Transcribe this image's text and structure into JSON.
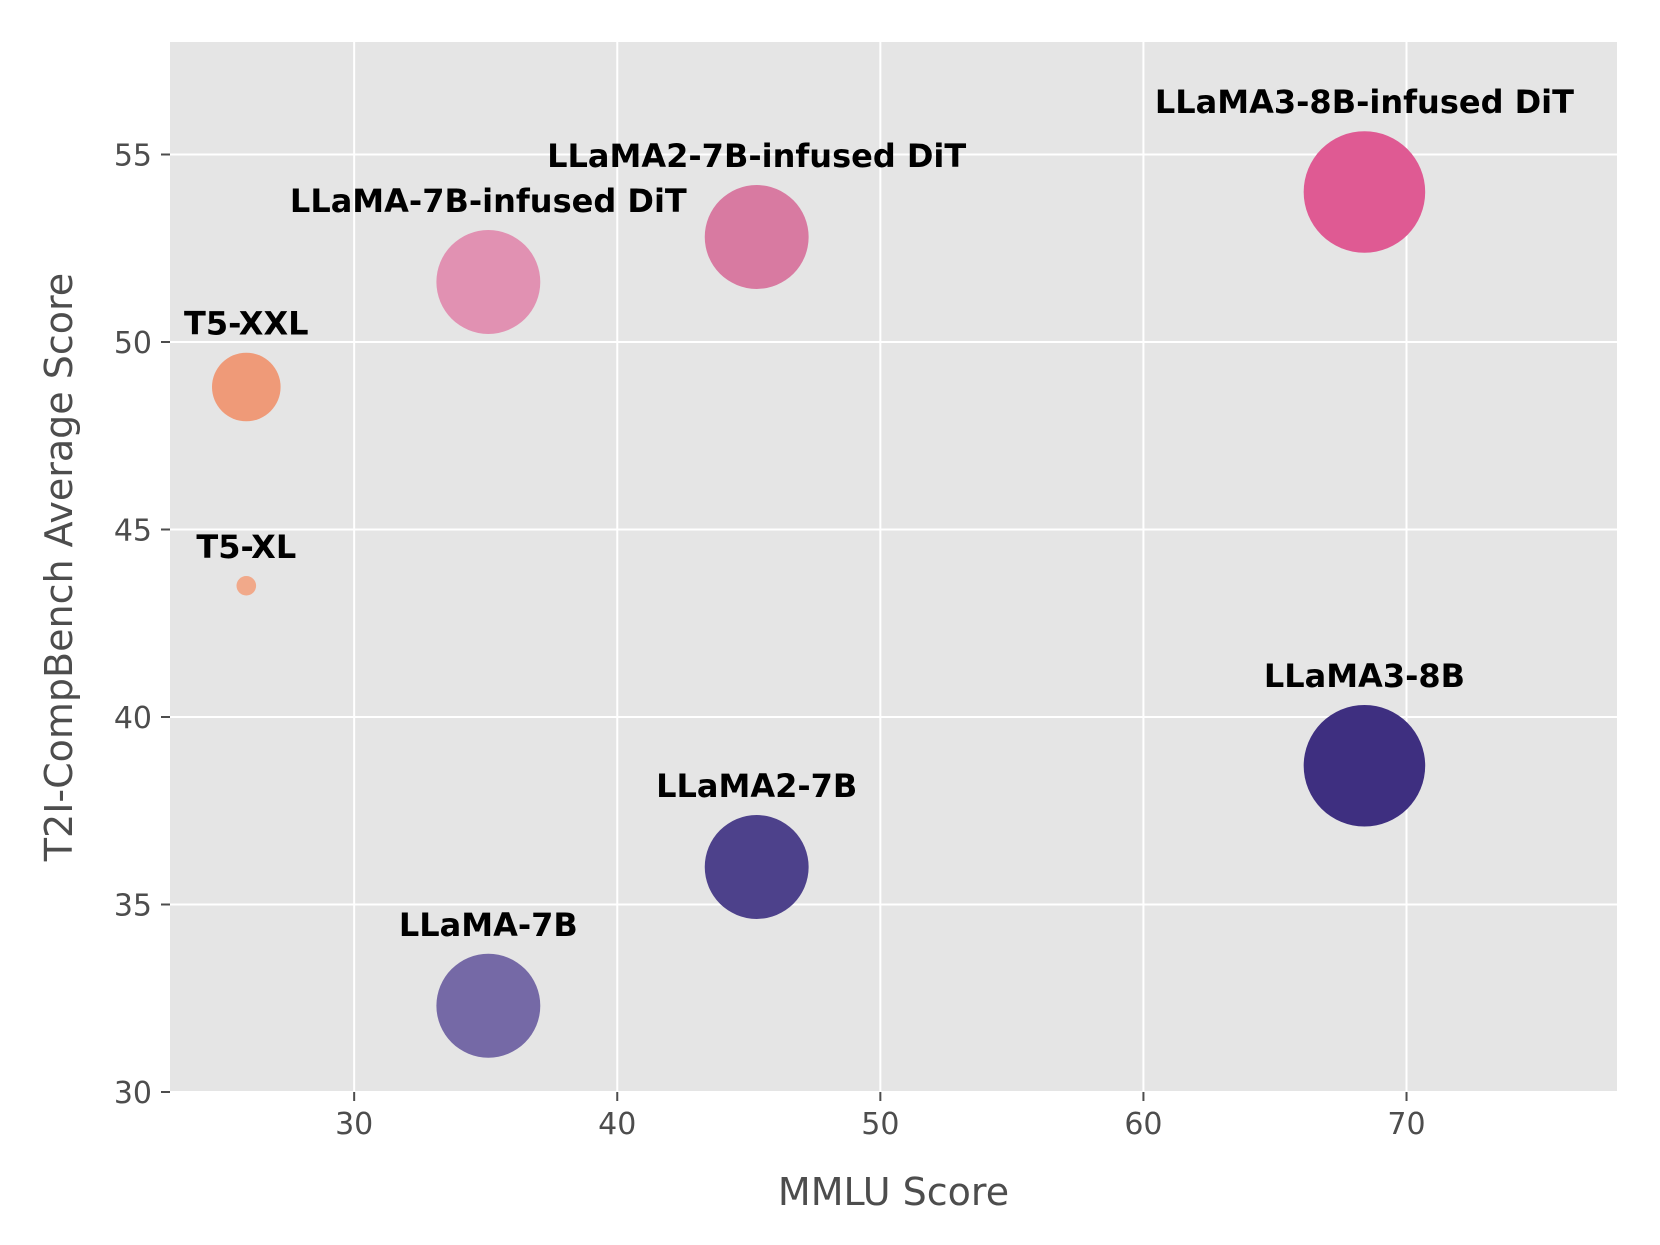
{
  "chart_data": {
    "type": "scatter",
    "xlabel": "MMLU Score",
    "ylabel": "T2I-CompBench Average Score",
    "xlim": [
      23,
      78
    ],
    "ylim": [
      30,
      58
    ],
    "xticks": [
      30,
      40,
      50,
      60,
      70
    ],
    "yticks": [
      30,
      35,
      40,
      45,
      50,
      55
    ],
    "grid": true,
    "background": "#e5e5e5",
    "points": [
      {
        "label": "T5-XL",
        "x": 25.9,
        "y": 43.5,
        "size": 1.0,
        "color": "#f1a98a"
      },
      {
        "label": "T5-XXL",
        "x": 25.9,
        "y": 48.8,
        "size": 3.5,
        "color": "#ef9a78"
      },
      {
        "label": "LLaMA-7B-infused DiT",
        "x": 35.1,
        "y": 51.6,
        "size": 5.3,
        "color": "#e191b2"
      },
      {
        "label": "LLaMA2-7B-infused DiT",
        "x": 45.3,
        "y": 52.8,
        "size": 5.3,
        "color": "#d87aa1"
      },
      {
        "label": "LLaMA3-8B-infused DiT",
        "x": 68.4,
        "y": 54.0,
        "size": 6.2,
        "color": "#df5a93"
      },
      {
        "label": "LLaMA-7B",
        "x": 35.1,
        "y": 32.3,
        "size": 5.3,
        "color": "#7569a6"
      },
      {
        "label": "LLaMA2-7B",
        "x": 45.3,
        "y": 36.0,
        "size": 5.3,
        "color": "#4d418b"
      },
      {
        "label": "LLaMA3-8B",
        "x": 68.4,
        "y": 38.7,
        "size": 6.2,
        "color": "#3e2f80"
      }
    ]
  }
}
